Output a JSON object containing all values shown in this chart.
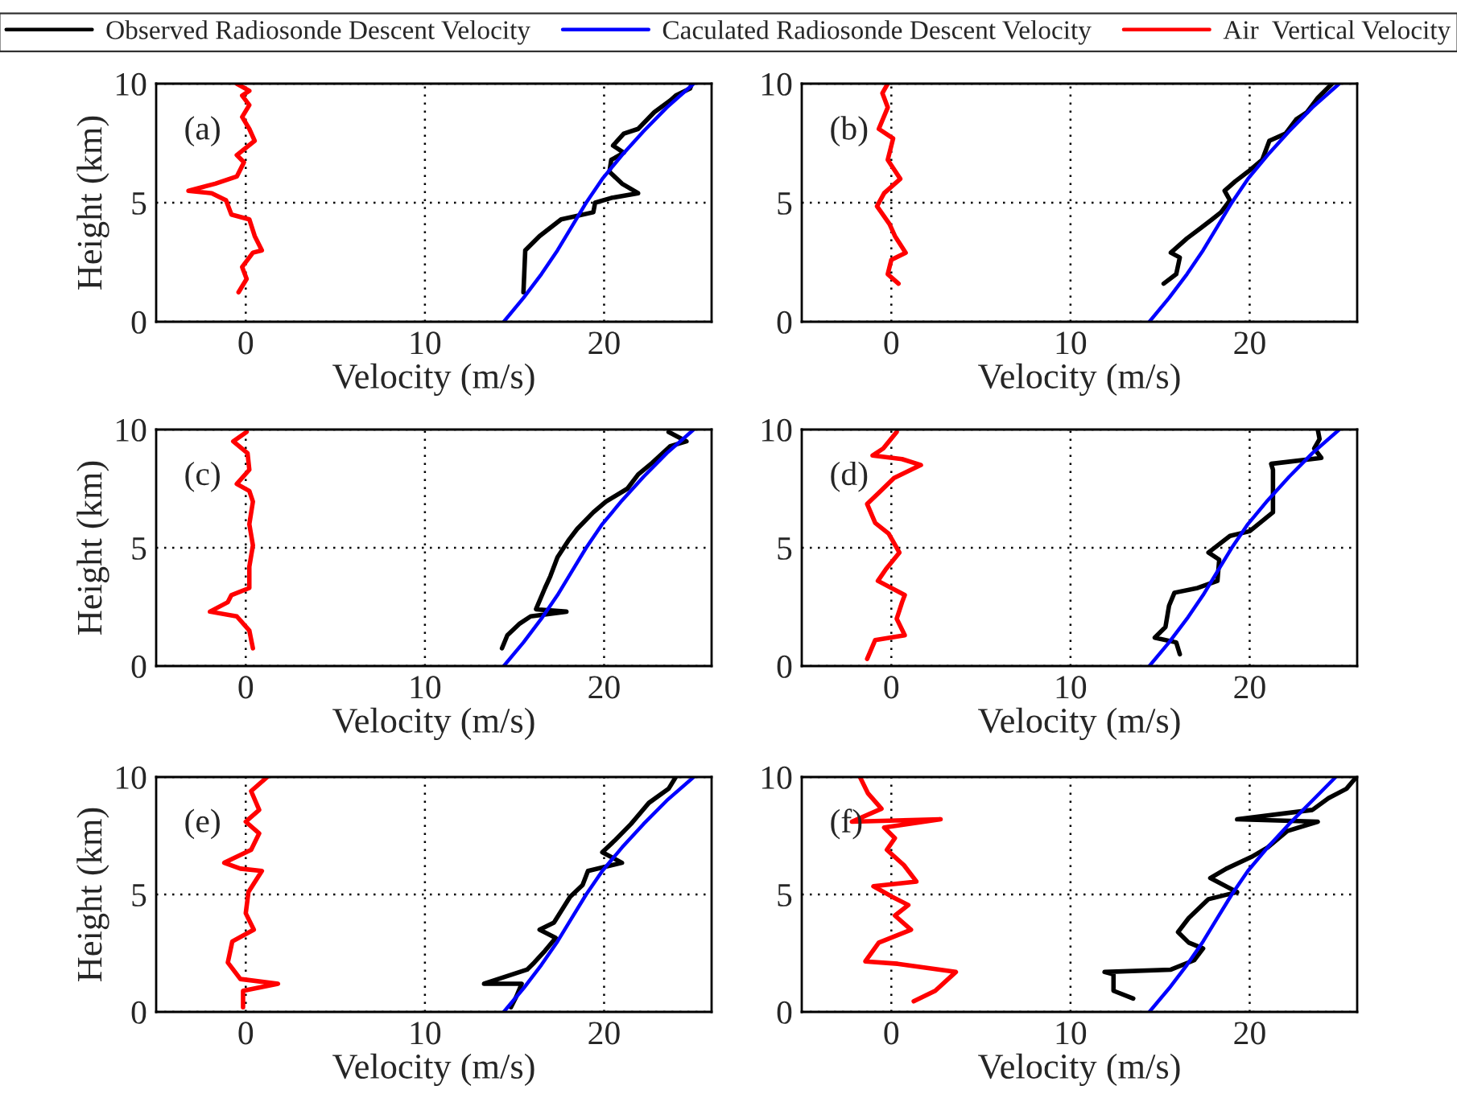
{
  "chart_data": [
    {
      "type": "line",
      "xlabel": "Velocity (m/s)",
      "ylabel": "Height (km)",
      "annotations": [
        "(a)"
      ],
      "xlim": [
        -5,
        26
      ],
      "ylim": [
        0,
        10
      ],
      "xticks": [
        0,
        10,
        20
      ],
      "yticks": [
        0,
        5,
        10
      ],
      "grid": true,
      "legend": "top",
      "series": [
        {
          "name": "Observed Radiosonde Descent Velocity",
          "color": "#000000",
          "x": [
            15.5,
            15.6,
            16.4,
            17.6,
            19.4,
            19.5,
            20.4,
            21.9,
            21.0,
            20.3,
            20.4,
            21.1,
            20.5,
            21.1,
            21.9,
            22.8,
            23.7,
            24.0,
            24.8,
            24.9
          ],
          "values": [
            1.24,
            3.0,
            3.6,
            4.3,
            4.6,
            5.0,
            5.2,
            5.4,
            5.8,
            6.3,
            6.8,
            7.1,
            7.4,
            7.9,
            8.1,
            8.8,
            9.3,
            9.5,
            9.8,
            10
          ]
        },
        {
          "name": "Caculated Radiosonde Descent Velocity",
          "color": "#0000ff",
          "x": [
            14.4,
            15.5,
            16.5,
            17.4,
            18.2,
            19.0,
            19.9,
            21.0,
            22.2,
            23.5,
            25.0
          ],
          "values": [
            0,
            1,
            2,
            3,
            4,
            5,
            6,
            7,
            8,
            9,
            10
          ]
        },
        {
          "name": "Air  Vertical Velocity",
          "color": "#ff0000",
          "x": [
            -0.4,
            0.05,
            -0.2,
            0.4,
            0.9,
            0.5,
            0.2,
            -0.8,
            -1.1,
            -1.9,
            -3.2,
            -1.7,
            -0.5,
            -0.1,
            -0.5,
            0.5,
            0.2,
            -0.2,
            0.2,
            -0.2,
            0.2,
            -0.5
          ],
          "values": [
            1.24,
            1.8,
            2.3,
            2.9,
            3.0,
            3.6,
            4.3,
            4.5,
            5.1,
            5.4,
            5.5,
            5.8,
            6.1,
            6.7,
            7.0,
            7.6,
            8.1,
            8.6,
            9.1,
            9.5,
            9.7,
            10
          ]
        }
      ]
    },
    {
      "type": "line",
      "xlabel": "Velocity (m/s)",
      "annotations": [
        "(b)"
      ],
      "xlim": [
        -5,
        26
      ],
      "ylim": [
        0,
        10
      ],
      "xticks": [
        0,
        10,
        20
      ],
      "yticks": [
        0,
        5,
        10
      ],
      "grid": true,
      "series": [
        {
          "color": "#000000",
          "x": [
            15.2,
            15.9,
            16.1,
            15.6,
            16.5,
            17.3,
            17.9,
            18.4,
            18.9,
            18.6,
            19.2,
            19.9,
            20.7,
            21.1,
            22.0,
            22.6,
            23.2,
            23.8,
            24.6
          ],
          "values": [
            1.6,
            2.0,
            2.7,
            2.9,
            3.5,
            3.95,
            4.3,
            4.6,
            5.1,
            5.5,
            5.9,
            6.3,
            6.8,
            7.6,
            7.9,
            8.5,
            8.8,
            9.4,
            10
          ]
        },
        {
          "color": "#0000ff",
          "x": [
            14.4,
            15.5,
            16.5,
            17.4,
            18.2,
            19.0,
            19.9,
            21.0,
            22.2,
            23.5,
            25.0
          ],
          "values": [
            0,
            1,
            2,
            3,
            4,
            5,
            6,
            7,
            8,
            9,
            10
          ]
        },
        {
          "color": "#ff0000",
          "x": [
            0.4,
            -0.2,
            0,
            0.8,
            0.2,
            -0.1,
            -0.8,
            -0.4,
            0.5,
            -0.2,
            0.1,
            -0.7,
            -0.2,
            -0.5,
            -0.2
          ],
          "values": [
            1.6,
            2.0,
            2.6,
            2.9,
            3.6,
            4.1,
            4.85,
            5.4,
            6.0,
            6.8,
            7.7,
            8.1,
            9.0,
            9.6,
            10
          ]
        }
      ]
    },
    {
      "type": "line",
      "xlabel": "Velocity (m/s)",
      "ylabel": "Height (km)",
      "annotations": [
        "(c)"
      ],
      "xlim": [
        -5,
        26
      ],
      "ylim": [
        0,
        10
      ],
      "xticks": [
        0,
        10,
        20
      ],
      "yticks": [
        0,
        5,
        10
      ],
      "grid": true,
      "series": [
        {
          "color": "#000000",
          "x": [
            14.3,
            14.6,
            15.3,
            15.9,
            17.9,
            16.2,
            16.7,
            17.0,
            17.4,
            18.0,
            18.5,
            19.4,
            20.1,
            21.3,
            21.9,
            22.7,
            23.7,
            24.6,
            23.6
          ],
          "values": [
            0.75,
            1.3,
            1.8,
            2.1,
            2.3,
            2.4,
            3.3,
            3.8,
            4.6,
            5.3,
            5.8,
            6.5,
            6.95,
            7.5,
            8.1,
            8.6,
            9.3,
            9.5,
            9.9
          ]
        },
        {
          "color": "#0000ff",
          "x": [
            14.4,
            15.5,
            16.5,
            17.4,
            18.2,
            19.0,
            19.9,
            21.0,
            22.2,
            23.5,
            25.0
          ],
          "values": [
            0,
            1,
            2,
            3,
            4,
            5,
            6,
            7,
            8,
            9,
            10
          ]
        },
        {
          "color": "#ff0000",
          "x": [
            0.4,
            0.2,
            -0.5,
            -2.0,
            -1.0,
            -0.8,
            0.2,
            0.2,
            0.4,
            0.2,
            0.4,
            0.2,
            -0.5,
            0.2,
            0.1,
            -0.7,
            0.05
          ],
          "values": [
            0.75,
            1.5,
            2.1,
            2.3,
            2.7,
            3.0,
            3.3,
            4.2,
            5.1,
            6.0,
            6.95,
            7.4,
            7.7,
            8.3,
            9.0,
            9.5,
            9.9
          ]
        }
      ]
    },
    {
      "type": "line",
      "xlabel": "Velocity (m/s)",
      "annotations": [
        "(d)"
      ],
      "xlim": [
        -5,
        26
      ],
      "ylim": [
        0,
        10
      ],
      "xticks": [
        0,
        10,
        20
      ],
      "yticks": [
        0,
        5,
        10
      ],
      "grid": true,
      "series": [
        {
          "color": "#000000",
          "x": [
            16.1,
            15.9,
            14.7,
            15.3,
            15.5,
            15.8,
            17.1,
            18.2,
            18.3,
            17.7,
            18.9,
            20.0,
            21.3,
            21.3,
            21.2,
            24.0,
            23.6,
            23.9,
            23.8
          ],
          "values": [
            0.5,
            1.0,
            1.2,
            1.65,
            2.55,
            3.1,
            3.3,
            3.6,
            4.5,
            4.8,
            5.5,
            5.7,
            6.5,
            8.3,
            8.55,
            8.8,
            9.2,
            9.6,
            10
          ]
        },
        {
          "color": "#0000ff",
          "x": [
            14.4,
            15.5,
            16.5,
            17.4,
            18.2,
            19.0,
            19.9,
            21.0,
            22.2,
            23.5,
            25.0
          ],
          "values": [
            0,
            1,
            2,
            3,
            4,
            5,
            6,
            7,
            8,
            9,
            10
          ]
        },
        {
          "color": "#ff0000",
          "x": [
            -1.35,
            -0.9,
            0.75,
            0.3,
            0.6,
            0.75,
            -0.75,
            -0.3,
            0.45,
            -0.15,
            -0.9,
            -1.35,
            -0.6,
            0.15,
            1.65,
            0.6,
            -1.05,
            -0.45,
            0.3
          ],
          "values": [
            0.3,
            1.1,
            1.3,
            2.0,
            2.7,
            3.0,
            3.6,
            4.1,
            4.8,
            5.6,
            6.05,
            6.85,
            7.4,
            7.95,
            8.5,
            8.75,
            8.9,
            9.2,
            9.9
          ]
        }
      ]
    },
    {
      "type": "line",
      "xlabel": "Velocity (m/s)",
      "ylabel": "Height (km)",
      "annotations": [
        "(e)"
      ],
      "xlim": [
        -5,
        26
      ],
      "ylim": [
        0,
        10
      ],
      "xticks": [
        0,
        10,
        20
      ],
      "yticks": [
        0,
        5,
        10
      ],
      "grid": true,
      "series": [
        {
          "color": "#000000",
          "x": [
            14.8,
            15.1,
            15.4,
            13.3,
            15.7,
            16.1,
            16.7,
            17.3,
            16.4,
            17.2,
            18.1,
            18.8,
            19.1,
            21.0,
            19.9,
            20.6,
            21.5,
            22.5,
            23.6,
            24.0
          ],
          "values": [
            0.2,
            0.65,
            1.2,
            1.2,
            1.8,
            2.1,
            2.6,
            3.15,
            3.5,
            3.8,
            4.9,
            5.4,
            6.0,
            6.35,
            6.8,
            7.3,
            8.0,
            8.9,
            9.5,
            10
          ]
        },
        {
          "color": "#0000ff",
          "x": [
            14.4,
            15.5,
            16.5,
            17.4,
            18.2,
            19.0,
            19.9,
            21.0,
            22.2,
            23.5,
            25.0
          ],
          "values": [
            0,
            1,
            2,
            3,
            4,
            5,
            6,
            7,
            8,
            9,
            10
          ]
        },
        {
          "color": "#ff0000",
          "x": [
            -0.15,
            -0.15,
            1.8,
            -0.3,
            -1.0,
            -0.75,
            0.45,
            0,
            0.15,
            0.9,
            -0.3,
            -1.2,
            0.3,
            0.75,
            0,
            0.75,
            0.3,
            1.2
          ],
          "values": [
            0.2,
            0.9,
            1.2,
            1.4,
            2.1,
            3.0,
            3.5,
            4.2,
            5.1,
            6.0,
            6.1,
            6.35,
            6.9,
            7.6,
            8.1,
            8.6,
            9.4,
            10
          ]
        }
      ]
    },
    {
      "type": "line",
      "xlabel": "Velocity (m/s)",
      "annotations": [
        "(f)"
      ],
      "xlim": [
        -5,
        26
      ],
      "ylim": [
        0,
        10
      ],
      "xticks": [
        0,
        10,
        20
      ],
      "yticks": [
        0,
        5,
        10
      ],
      "grid": true,
      "series": [
        {
          "color": "#000000",
          "x": [
            13.5,
            12.4,
            12.4,
            11.9,
            15.6,
            16.9,
            17.4,
            16.6,
            16.0,
            16.6,
            17.7,
            19.3,
            17.8,
            18.7,
            20.1,
            21.0,
            22.1,
            23.8,
            19.3,
            23.5,
            24.4,
            25.4,
            25.9
          ],
          "values": [
            0.57,
            0.9,
            1.6,
            1.7,
            1.8,
            2.2,
            2.7,
            2.95,
            3.4,
            4.0,
            4.8,
            5.1,
            5.7,
            6.1,
            6.6,
            7.0,
            7.7,
            8.1,
            8.2,
            8.6,
            9.1,
            9.5,
            9.95
          ]
        },
        {
          "color": "#0000ff",
          "x": [
            14.4,
            15.5,
            16.5,
            17.4,
            18.2,
            19.0,
            19.9,
            21.0,
            22.2,
            23.5,
            24.8
          ],
          "values": [
            0,
            1,
            2,
            3,
            4,
            5,
            6,
            7,
            8,
            9,
            10
          ]
        },
        {
          "color": "#ff0000",
          "x": [
            1.25,
            2.45,
            3.6,
            0.35,
            -1.45,
            -0.7,
            1.1,
            0.2,
            0.95,
            0.05,
            -1.0,
            1.4,
            0.7,
            -0.25,
            0.2,
            -0.4,
            2.75,
            -2.2,
            -0.55,
            -1.3,
            -1.75
          ],
          "values": [
            0.45,
            0.9,
            1.7,
            2.05,
            2.15,
            2.95,
            3.5,
            4.1,
            4.55,
            4.9,
            5.35,
            5.55,
            6.25,
            6.9,
            7.4,
            7.85,
            8.2,
            8.1,
            8.65,
            9.3,
            10
          ]
        }
      ]
    }
  ]
}
